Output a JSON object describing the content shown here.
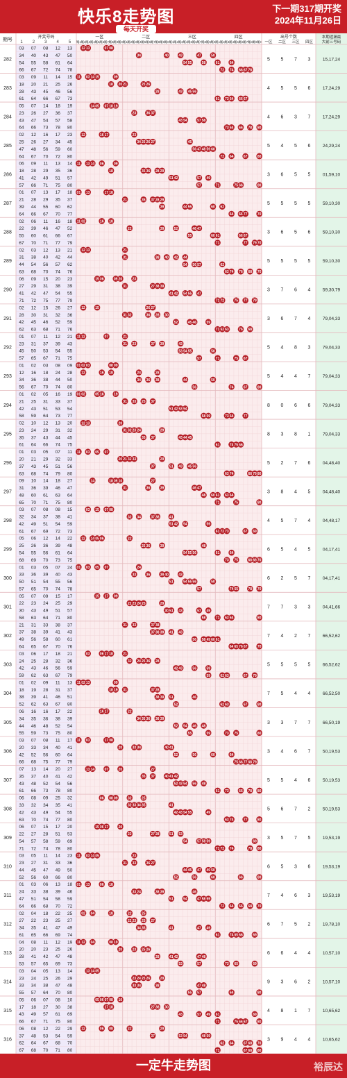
{
  "header": {
    "title": "快乐8走势图",
    "daily_badge": "每天开奖",
    "next_line1": "下一期317期开奖",
    "next_line2": "2024年11月26日"
  },
  "columns": {
    "period": "期号",
    "draw_numbers": "开奖号码",
    "draw_subcols": [
      "1",
      "2",
      "3",
      "4",
      "5"
    ],
    "zone1": "一区",
    "zone2": "二区",
    "zone3": "三区",
    "zone4": "四区",
    "tails": [
      "尾1",
      "尾2",
      "尾3",
      "尾4",
      "尾5",
      "尾6",
      "尾7",
      "尾8",
      "尾9",
      "尾0"
    ],
    "count_title": "出号个数",
    "count_sub": [
      "一区",
      "二区",
      "三区",
      "四区"
    ],
    "predict_title": "本期遗漏最",
    "predict_sub": "大前三号码"
  },
  "rows": [
    {
      "period": "282",
      "nums": [
        [
          3,
          7,
          8,
          12,
          13
        ],
        [
          34,
          40,
          43,
          47,
          50
        ],
        [
          54,
          55,
          58,
          61,
          64
        ],
        [
          66,
          67,
          72,
          74,
          78
        ]
      ],
      "counts": [
        "5",
        "5",
        "7",
        "3"
      ],
      "pred": "15,17,24"
    },
    {
      "period": "283",
      "nums": [
        [
          3,
          9,
          11,
          14,
          15
        ],
        [
          18,
          20,
          21,
          25,
          26
        ],
        [
          28,
          43,
          45,
          46,
          56
        ],
        [
          61,
          64,
          66,
          67,
          73
        ]
      ],
      "counts": [
        "4",
        "5",
        "5",
        "6"
      ],
      "pred": "17,24,29"
    },
    {
      "period": "284",
      "nums": [
        [
          5,
          7,
          14,
          18,
          19
        ],
        [
          23,
          26,
          27,
          36,
          37
        ],
        [
          43,
          47,
          54,
          57,
          58
        ],
        [
          64,
          66,
          73,
          78,
          80
        ]
      ],
      "counts": [
        "4",
        "6",
        "3",
        "7"
      ],
      "pred": "17,24,29"
    },
    {
      "period": "285",
      "nums": [
        [
          2,
          12,
          16,
          17,
          23
        ],
        [
          25,
          26,
          27,
          34,
          45
        ],
        [
          47,
          48,
          56,
          59,
          60
        ],
        [
          64,
          67,
          70,
          72,
          80
        ]
      ],
      "counts": [
        "5",
        "4",
        "5",
        "6"
      ],
      "pred": "24,29,24"
    },
    {
      "period": "286",
      "nums": [
        [
          6,
          9,
          11,
          13,
          14
        ],
        [
          18,
          28,
          29,
          35,
          36
        ],
        [
          41,
          42,
          49,
          51,
          57
        ],
        [
          57,
          66,
          71,
          75,
          80
        ]
      ],
      "counts": [
        "3",
        "6",
        "5",
        "5"
      ],
      "pred": "01,59,10"
    },
    {
      "period": "287",
      "nums": [
        [
          1,
          7,
          13,
          17,
          18
        ],
        [
          21,
          28,
          29,
          35,
          37
        ],
        [
          39,
          44,
          55,
          60,
          62
        ],
        [
          64,
          66,
          67,
          70,
          77
        ]
      ],
      "counts": [
        "5",
        "5",
        "5",
        "5"
      ],
      "pred": "59,10,30"
    },
    {
      "period": "288",
      "nums": [
        [
          2,
          6,
          11,
          16,
          18
        ],
        [
          22,
          39,
          46,
          47,
          52
        ],
        [
          55,
          60,
          61,
          66,
          67
        ],
        [
          67,
          70,
          71,
          77,
          79
        ]
      ],
      "counts": [
        "3",
        "6",
        "5",
        "6"
      ],
      "pred": "59,10,30"
    },
    {
      "period": "289",
      "nums": [
        [
          2,
          3,
          12,
          13,
          21
        ],
        [
          31,
          38,
          40,
          42,
          44
        ],
        [
          44,
          54,
          56,
          57,
          62
        ],
        [
          63,
          68,
          70,
          74,
          76
        ]
      ],
      "counts": [
        "5",
        "5",
        "5",
        "5"
      ],
      "pred": "59,10,30"
    },
    {
      "period": "290",
      "nums": [
        [
          6,
          9,
          15,
          20,
          23
        ],
        [
          27,
          29,
          31,
          38,
          39
        ],
        [
          41,
          42,
          47,
          54,
          55
        ],
        [
          71,
          72,
          75,
          77,
          79
        ]
      ],
      "counts": [
        "3",
        "7",
        "6",
        "4"
      ],
      "pred": "59,30,79"
    },
    {
      "period": "291",
      "nums": [
        [
          2,
          12,
          15,
          26,
          27
        ],
        [
          28,
          30,
          31,
          32,
          36
        ],
        [
          42,
          45,
          46,
          52,
          59
        ],
        [
          62,
          63,
          68,
          71,
          76
        ]
      ],
      "counts": [
        "3",
        "6",
        "7",
        "4"
      ],
      "pred": "79,04,33"
    },
    {
      "period": "292",
      "nums": [
        [
          1,
          7,
          11,
          12,
          21
        ],
        [
          23,
          31,
          37,
          39,
          43
        ],
        [
          45,
          50,
          53,
          54,
          55
        ],
        [
          57,
          65,
          67,
          71,
          75
        ]
      ],
      "counts": [
        "5",
        "4",
        "8",
        "3"
      ],
      "pred": "79,04,33"
    },
    {
      "period": "293",
      "nums": [
        [
          1,
          2,
          3,
          8,
          9
        ],
        [
          12,
          16,
          18,
          24,
          28
        ],
        [
          34,
          36,
          38,
          44,
          50
        ],
        [
          56,
          67,
          70,
          74,
          80
        ]
      ],
      "counts": [
        "5",
        "4",
        "4",
        "7"
      ],
      "pred": "79,04,33"
    },
    {
      "period": "294",
      "nums": [
        [
          1,
          2,
          5,
          16,
          19
        ],
        [
          21,
          25,
          31,
          33,
          37
        ],
        [
          42,
          43,
          51,
          53,
          54
        ],
        [
          58,
          59,
          64,
          73,
          77
        ]
      ],
      "counts": [
        "8",
        "0",
        "6",
        "6"
      ],
      "pred": "79,04,33"
    },
    {
      "period": "295",
      "nums": [
        [
          2,
          10,
          12,
          13,
          20
        ],
        [
          23,
          24,
          29,
          31,
          32
        ],
        [
          35,
          37,
          43,
          44,
          45
        ],
        [
          61,
          64,
          66,
          74,
          75
        ]
      ],
      "counts": [
        "8",
        "3",
        "8",
        "1"
      ],
      "pred": "79,04,33"
    },
    {
      "period": "296",
      "nums": [
        [
          1,
          3,
          5,
          7,
          11
        ],
        [
          20,
          21,
          29,
          32,
          33
        ],
        [
          37,
          43,
          45,
          51,
          56
        ],
        [
          63,
          68,
          74,
          79,
          80
        ]
      ],
      "counts": [
        "5",
        "2",
        "7",
        "6"
      ],
      "pred": "04,48,40"
    },
    {
      "period": "297",
      "nums": [
        [
          9,
          10,
          14,
          18,
          27
        ],
        [
          31,
          36,
          39,
          46,
          47
        ],
        [
          48,
          60,
          61,
          63,
          64
        ],
        [
          65,
          70,
          71,
          75,
          80
        ]
      ],
      "counts": [
        "3",
        "8",
        "4",
        "5"
      ],
      "pred": "04,48,40"
    },
    {
      "period": "298",
      "nums": [
        [
          3,
          7,
          8,
          8,
          15
        ],
        [
          32,
          34,
          37,
          38,
          41
        ],
        [
          42,
          49,
          51,
          54,
          59
        ],
        [
          61,
          67,
          69,
          72,
          73
        ]
      ],
      "counts": [
        "4",
        "5",
        "7",
        "4"
      ],
      "pred": "04,48,17"
    },
    {
      "period": "299",
      "nums": [
        [
          5,
          6,
          12,
          14,
          22
        ],
        [
          25,
          26,
          36,
          39,
          48
        ],
        [
          54,
          55,
          56,
          61,
          64
        ],
        [
          68,
          69,
          70,
          73,
          75
        ]
      ],
      "counts": [
        "6",
        "5",
        "4",
        "5"
      ],
      "pred": "04,17,41"
    },
    {
      "period": "300",
      "nums": [
        [
          1,
          3,
          5,
          7,
          24
        ],
        [
          33,
          36,
          39,
          40,
          43
        ],
        [
          50,
          51,
          54,
          55,
          56
        ],
        [
          57,
          65,
          70,
          74,
          78
        ]
      ],
      "counts": [
        "6",
        "2",
        "5",
        "7"
      ],
      "pred": "04,17,41"
    },
    {
      "period": "301",
      "nums": [
        [
          5,
          7,
          9,
          15,
          17
        ],
        [
          22,
          23,
          24,
          25,
          29
        ],
        [
          30,
          43,
          49,
          51,
          57
        ],
        [
          58,
          63,
          64,
          71,
          80
        ]
      ],
      "counts": [
        "7",
        "7",
        "3",
        "3"
      ],
      "pred": "04,41,66"
    },
    {
      "period": "302",
      "nums": [
        [
          21,
          31,
          33,
          38,
          37
        ],
        [
          37,
          38,
          39,
          41,
          43
        ],
        [
          49,
          56,
          58,
          60,
          61
        ],
        [
          64,
          65,
          67,
          70,
          76
        ]
      ],
      "counts": [
        "7",
        "4",
        "2",
        "7"
      ],
      "pred": "66,52,62"
    },
    {
      "period": "303",
      "nums": [
        [
          3,
          6,
          17,
          18,
          21
        ],
        [
          24,
          25,
          28,
          32,
          36
        ],
        [
          42,
          43,
          46,
          56,
          59
        ],
        [
          59,
          62,
          63,
          67,
          79
        ]
      ],
      "counts": [
        "5",
        "5",
        "5",
        "5"
      ],
      "pred": "66,52,62"
    },
    {
      "period": "304",
      "nums": [
        [
          1,
          2,
          9,
          11,
          13
        ],
        [
          18,
          19,
          28,
          31,
          37
        ],
        [
          38,
          39,
          41,
          46,
          51
        ],
        [
          52,
          62,
          63,
          67,
          80
        ]
      ],
      "counts": [
        "7",
        "5",
        "4",
        "4"
      ],
      "pred": "66,52,50"
    },
    {
      "period": "305",
      "nums": [
        [
          6,
          16,
          16,
          17,
          22
        ],
        [
          34,
          35,
          36,
          38,
          39
        ],
        [
          44,
          46,
          48,
          52,
          54
        ],
        [
          55,
          59,
          73,
          75,
          80
        ]
      ],
      "counts": [
        "3",
        "3",
        "7",
        "7"
      ],
      "pred": "66,50,19"
    },
    {
      "period": "306",
      "nums": [
        [
          3,
          7,
          8,
          11,
          17
        ],
        [
          20,
          33,
          34,
          40,
          41
        ],
        [
          42,
          52,
          56,
          60,
          64
        ],
        [
          66,
          68,
          75,
          77,
          79
        ]
      ],
      "counts": [
        "3",
        "4",
        "6",
        "7"
      ],
      "pred": "50,19,53"
    },
    {
      "period": "307",
      "nums": [
        [
          7,
          13,
          14,
          20,
          27
        ],
        [
          35,
          37,
          40,
          41,
          42
        ],
        [
          43,
          48,
          52,
          54,
          56
        ],
        [
          61,
          66,
          73,
          78,
          80
        ]
      ],
      "counts": [
        "5",
        "5",
        "4",
        "6"
      ],
      "pred": "50,19,53"
    },
    {
      "period": "308",
      "nums": [
        [
          6,
          8,
          9,
          25,
          32
        ],
        [
          33,
          32,
          34,
          35,
          41
        ],
        [
          42,
          43,
          49,
          54,
          55
        ],
        [
          63,
          70,
          74,
          77,
          80
        ]
      ],
      "counts": [
        "5",
        "6",
        "7",
        "2"
      ],
      "pred": "50,19,53"
    },
    {
      "period": "309",
      "nums": [
        [
          6,
          7,
          15,
          17,
          20
        ],
        [
          22,
          27,
          28,
          51,
          53
        ],
        [
          54,
          57,
          58,
          59,
          69
        ],
        [
          71,
          72,
          74,
          78,
          80
        ]
      ],
      "counts": [
        "3",
        "5",
        "7",
        "5"
      ],
      "pred": "19,53,19"
    },
    {
      "period": "310",
      "nums": [
        [
          3,
          5,
          11,
          14,
          23
        ],
        [
          23,
          27,
          31,
          33,
          36
        ],
        [
          44,
          45,
          47,
          49,
          50
        ],
        [
          52,
          56,
          60,
          66,
          80
        ]
      ],
      "counts": [
        "6",
        "5",
        "3",
        "6"
      ],
      "pred": "19,53,19"
    },
    {
      "period": "311",
      "nums": [
        [
          1,
          3,
          6,
          13,
          18
        ],
        [
          24,
          33,
          38,
          39,
          46
        ],
        [
          47,
          51,
          54,
          58,
          59
        ],
        [
          64,
          66,
          68,
          70,
          72
        ]
      ],
      "counts": [
        "7",
        "4",
        "6",
        "3"
      ],
      "pred": "19,53,19"
    },
    {
      "period": "312",
      "nums": [
        [
          2,
          4,
          18,
          22,
          25
        ],
        [
          27,
          22,
          23,
          25,
          27
        ],
        [
          34,
          35,
          41,
          47,
          49
        ],
        [
          61,
          65,
          66,
          69,
          74
        ]
      ],
      "counts": [
        "6",
        "7",
        "5",
        "2"
      ],
      "pred": "19,78,10"
    },
    {
      "period": "313",
      "nums": [
        [
          4,
          8,
          11,
          12,
          19
        ],
        [
          20,
          20,
          23,
          25,
          26
        ],
        [
          28,
          41,
          42,
          47,
          48
        ],
        [
          53,
          57,
          65,
          69,
          73
        ]
      ],
      "counts": [
        "6",
        "6",
        "4",
        "4"
      ],
      "pred": "10,57,10"
    },
    {
      "period": "314",
      "nums": [
        [
          3,
          4,
          5,
          13,
          14
        ],
        [
          23,
          24,
          25,
          26,
          29
        ],
        [
          33,
          34,
          38,
          47,
          48
        ],
        [
          55,
          57,
          64,
          70,
          80
        ]
      ],
      "counts": [
        "9",
        "3",
        "6",
        "2"
      ],
      "pred": "10,57,10"
    },
    {
      "period": "315",
      "nums": [
        [
          5,
          6,
          7,
          8,
          10
        ],
        [
          17,
          18,
          27,
          30,
          38
        ],
        [
          43,
          49,
          57,
          61,
          69
        ],
        [
          66,
          67,
          71,
          75,
          80
        ]
      ],
      "counts": [
        "4",
        "8",
        "1",
        "7"
      ],
      "pred": "10,65,62"
    },
    {
      "period": "316",
      "nums": [
        [
          6,
          8,
          12,
          22,
          29
        ],
        [
          37,
          48,
          53,
          54,
          59
        ],
        [
          62,
          64,
          67,
          68,
          70
        ],
        [
          67,
          68,
          70,
          71,
          80
        ]
      ],
      "counts": [
        "3",
        "9",
        "4",
        "4"
      ],
      "pred": "10,65,62"
    }
  ],
  "footer": {
    "title": "一定牛走势图",
    "watermark": "裕辰达"
  },
  "colors": {
    "red": "#c81f27",
    "ball": "#b51d25",
    "zone_bg": "#fbeced",
    "draw_bg": "#efeafa",
    "pred_bg": "#e3f5e8",
    "line": "#e4b9bd"
  }
}
